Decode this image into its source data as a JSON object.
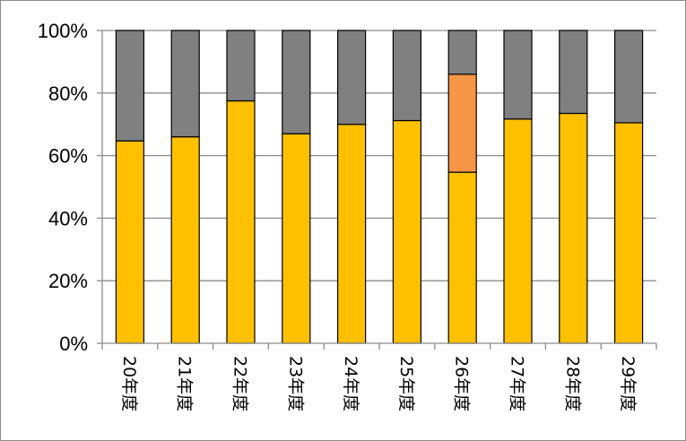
{
  "chart_data": {
    "type": "bar",
    "stacked": true,
    "percent_stacked": true,
    "title": "",
    "xlabel": "",
    "ylabel": "",
    "ylim": [
      0,
      100
    ],
    "y_ticks": [
      "0%",
      "20%",
      "40%",
      "60%",
      "80%",
      "100%"
    ],
    "y_tick_values": [
      0,
      20,
      40,
      60,
      80,
      100
    ],
    "grid": true,
    "legend": "none",
    "categories": [
      "20年度",
      "21年度",
      "22年度",
      "23年度",
      "24年度",
      "25年度",
      "26年度",
      "27年度",
      "28年度",
      "29年度"
    ],
    "series": [
      {
        "color": "#FFC000",
        "values": [
          64.7,
          66.0,
          77.5,
          67.0,
          70.0,
          71.2,
          54.7,
          71.7,
          73.5,
          70.5
        ]
      },
      {
        "color": "#F79646",
        "values": [
          0,
          0,
          0,
          0,
          0,
          0,
          31.3,
          0,
          0,
          0
        ]
      },
      {
        "color": "#808080",
        "values": [
          35.3,
          34.0,
          22.5,
          33.0,
          30.0,
          28.8,
          14.0,
          28.3,
          26.5,
          29.5
        ]
      }
    ]
  }
}
